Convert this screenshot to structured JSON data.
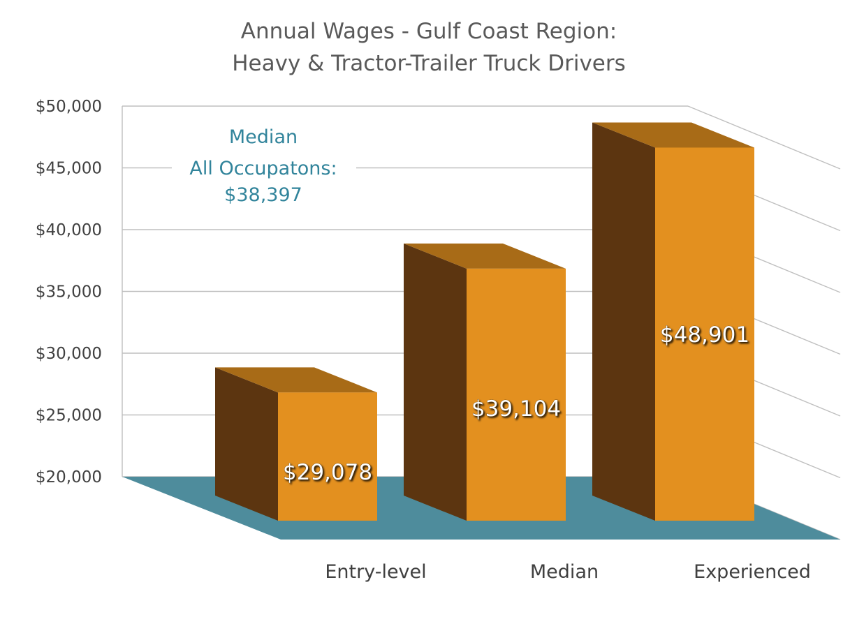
{
  "chart_data": {
    "type": "bar",
    "title": "Annual Wages - Gulf Coast Region:",
    "subtitle": "Heavy & Tractor-Trailer Truck Drivers",
    "categories": [
      "Entry-level",
      "Median",
      "Experienced"
    ],
    "values": [
      29078,
      39104,
      48901
    ],
    "data_labels": [
      "$29,078",
      "$39,104",
      "$48,901"
    ],
    "ylim": [
      20000,
      50000
    ],
    "yticks": [
      20000,
      25000,
      30000,
      35000,
      40000,
      45000,
      50000
    ],
    "ytick_labels": [
      "$20,000",
      "$25,000",
      "$30,000",
      "$35,000",
      "$40,000",
      "$45,000",
      "$50,000"
    ],
    "xlabel": "",
    "ylabel": "",
    "grid": true,
    "style": "3d-column",
    "annotation": {
      "lines": [
        "Median",
        "All Occupatons:",
        "$38,397"
      ],
      "value": 38397
    }
  },
  "colors": {
    "bar_front": "#e3901f",
    "bar_side": "#5c3510",
    "bar_top": "#a86b17",
    "floor": "#4e8c9c",
    "annotation_text": "#31849b",
    "title_text": "#595959",
    "axis_text": "#404040",
    "gridline": "#bfbfbf"
  }
}
